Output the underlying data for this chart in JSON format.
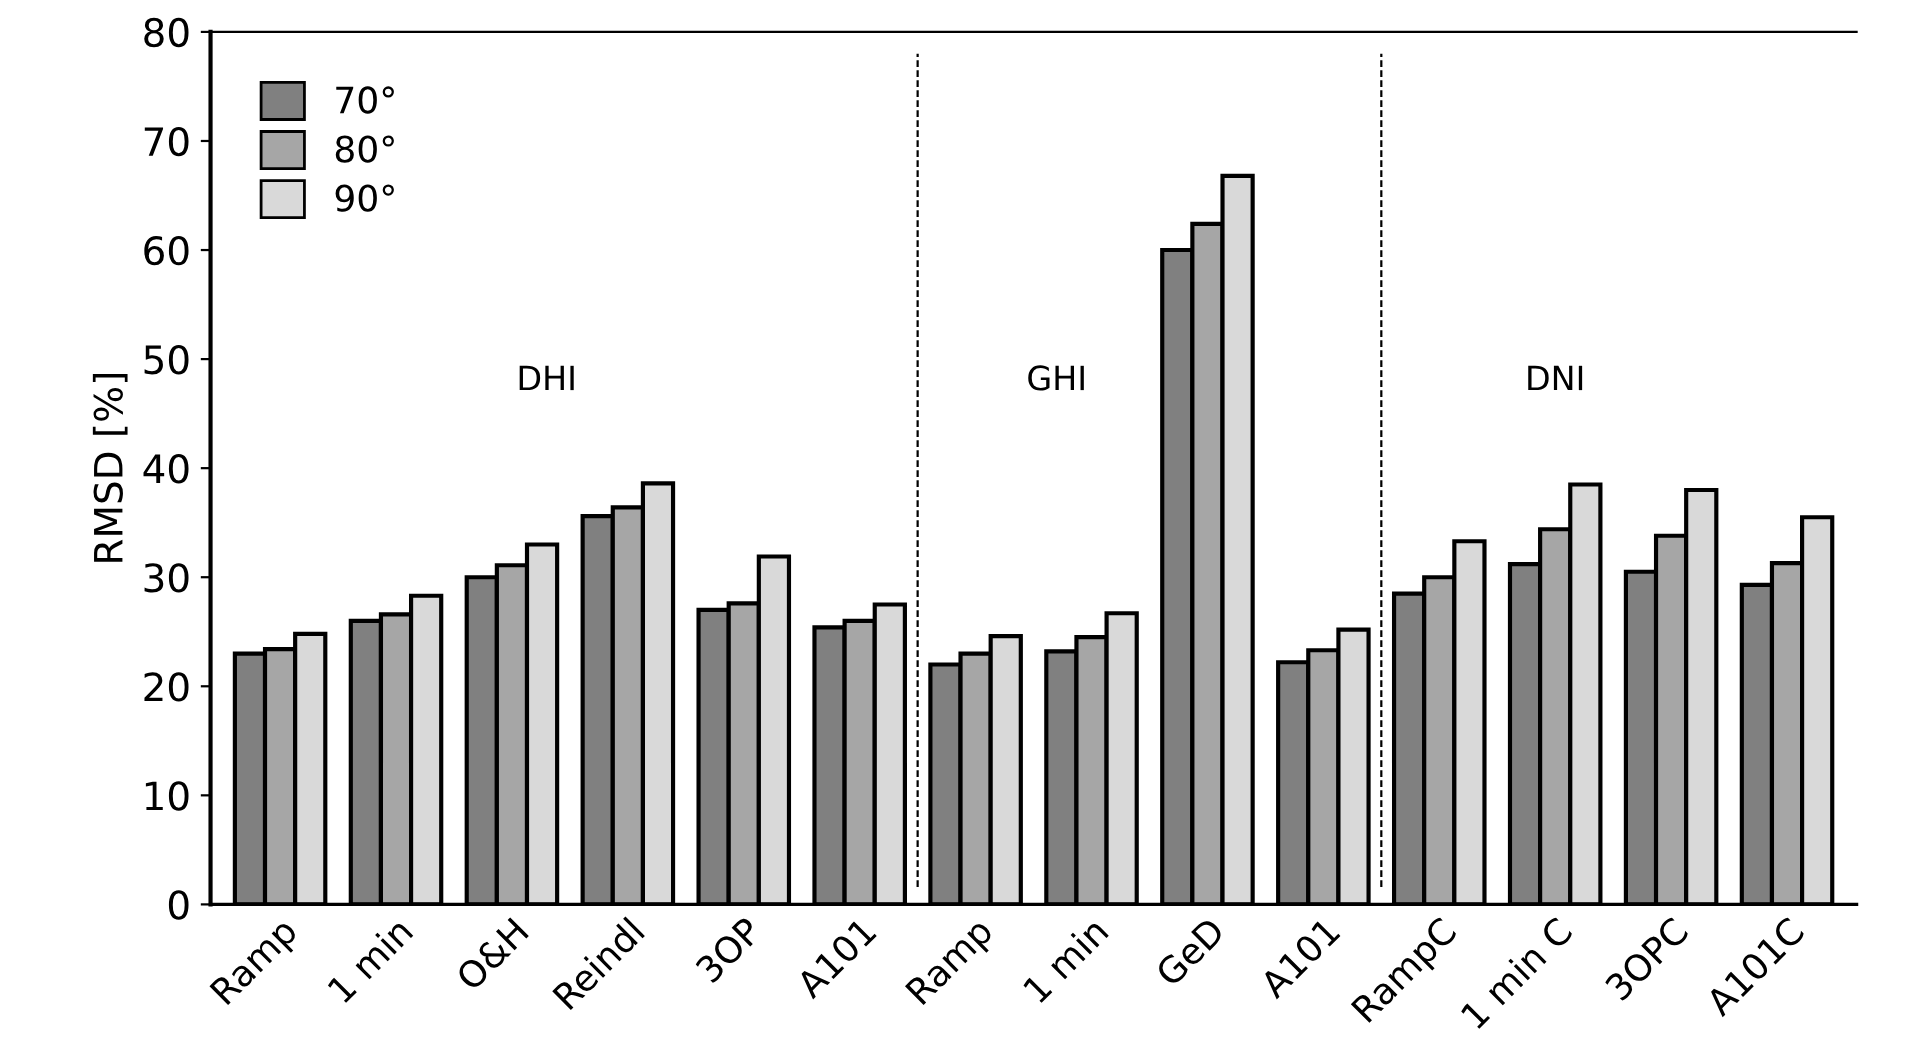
{
  "chart_data": {
    "type": "bar",
    "ylabel": "RMSD [%]",
    "categories": [
      "Ramp",
      "1 min",
      "O&H",
      "Reindl",
      "3OP",
      "A101",
      "Ramp",
      "1 min",
      "GeD",
      "A101",
      "RampC",
      "1 min C",
      "3OPC",
      "A101C"
    ],
    "series": [
      {
        "name": "70°",
        "color": "#808080",
        "values": [
          23.0,
          26.0,
          30.0,
          35.6,
          27.0,
          25.4,
          22.0,
          23.2,
          60.0,
          22.2,
          28.5,
          31.2,
          30.5,
          29.3
        ]
      },
      {
        "name": "80°",
        "color": "#a6a6a6",
        "values": [
          23.4,
          26.6,
          31.1,
          36.4,
          27.6,
          26.0,
          23.0,
          24.5,
          62.4,
          23.3,
          30.0,
          34.4,
          33.8,
          31.3
        ]
      },
      {
        "name": "90°",
        "color": "#d9d9d9",
        "values": [
          24.8,
          28.3,
          33.0,
          38.6,
          31.9,
          27.5,
          24.6,
          26.7,
          66.8,
          25.2,
          33.3,
          38.5,
          38.0,
          35.5
        ]
      }
    ],
    "annotations": [
      "DHI",
      "GHI",
      "DNI"
    ],
    "ylim": [
      0,
      80
    ],
    "yticks": [
      0,
      10,
      20,
      30,
      40,
      50,
      60,
      70,
      80
    ],
    "grid": false,
    "legend": "top left"
  }
}
